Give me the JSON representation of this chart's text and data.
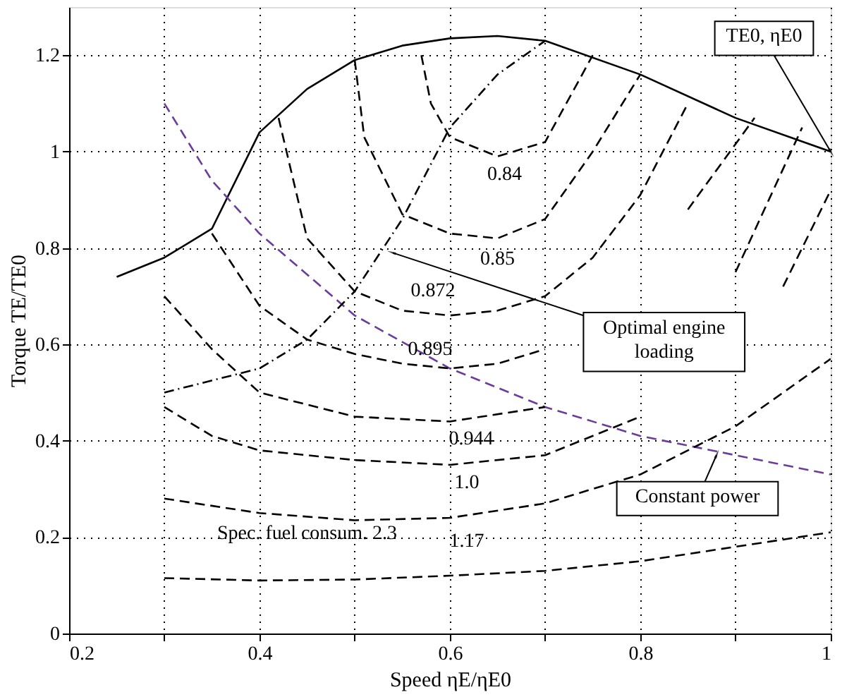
{
  "chart_data": {
    "type": "line",
    "xlabel": "Speed ηE/ηE0",
    "ylabel": "Torque TE/TE0",
    "xlim": [
      0.2,
      1.0
    ],
    "ylim": [
      0,
      1.3
    ],
    "xticks": [
      0.2,
      {
        "value": 0.3,
        "label": null
      },
      0.4,
      {
        "value": 0.5,
        "label": null
      },
      0.6,
      {
        "value": 0.7,
        "label": null
      },
      0.8,
      {
        "value": 0.9,
        "label": null
      },
      {
        "value": 1.0,
        "label": "1"
      }
    ],
    "yticks": [
      0,
      0.2,
      0.4,
      0.6,
      0.8,
      {
        "value": 1.0,
        "label": "1"
      },
      1.2
    ],
    "grid": true,
    "marker": "none",
    "series": [
      {
        "type": "line",
        "color": "#000000",
        "line_style": "solid",
        "x": [
          0.25,
          0.3,
          0.35,
          0.4,
          0.45,
          0.5,
          0.55,
          0.6,
          0.65,
          0.7,
          0.8,
          0.9,
          1.0
        ],
        "values": [
          0.74,
          0.78,
          0.84,
          1.04,
          1.13,
          1.19,
          1.22,
          1.235,
          1.24,
          1.23,
          1.16,
          1.07,
          1.0
        ]
      },
      {
        "type": "line",
        "color": "#6a3d9a",
        "line_style": "dashed",
        "x": [
          0.3,
          0.35,
          0.4,
          0.5,
          0.6,
          0.7,
          0.8,
          0.9,
          1.0
        ],
        "values": [
          1.1,
          0.94,
          0.83,
          0.66,
          0.55,
          0.47,
          0.41,
          0.37,
          0.33
        ]
      },
      {
        "type": "line",
        "color": "#000000",
        "line_style": "dashdot",
        "x": [
          0.3,
          0.4,
          0.45,
          0.5,
          0.55,
          0.6,
          0.65,
          0.7
        ],
        "values": [
          0.5,
          0.55,
          0.61,
          0.71,
          0.86,
          1.05,
          1.16,
          1.23
        ]
      },
      {
        "type": "line",
        "color": "#000000",
        "line_style": "dashed",
        "x": [
          0.57,
          0.58,
          0.6,
          0.65,
          0.7,
          0.75
        ],
        "values": [
          1.2,
          1.1,
          1.03,
          0.99,
          1.02,
          1.2
        ]
      },
      {
        "type": "line",
        "color": "#000000",
        "line_style": "dashed",
        "x": [
          0.5,
          0.51,
          0.55,
          0.6,
          0.65,
          0.7,
          0.75,
          0.8
        ],
        "values": [
          1.19,
          1.03,
          0.87,
          0.83,
          0.82,
          0.86,
          1.0,
          1.16
        ]
      },
      {
        "type": "line",
        "color": "#000000",
        "line_style": "dashed",
        "x": [
          0.42,
          0.45,
          0.5,
          0.55,
          0.6,
          0.65,
          0.7,
          0.75,
          0.8,
          0.85
        ],
        "values": [
          1.07,
          0.82,
          0.71,
          0.67,
          0.66,
          0.67,
          0.7,
          0.78,
          0.91,
          1.1
        ]
      },
      {
        "type": "line",
        "color": "#000000",
        "line_style": "dashed",
        "x": [
          0.35,
          0.4,
          0.45,
          0.5,
          0.55,
          0.6,
          0.65,
          0.7,
          0.75,
          0.8,
          0.85,
          0.92
        ],
        "values": [
          0.83,
          0.68,
          0.61,
          0.58,
          0.56,
          0.55,
          0.56,
          0.59,
          null,
          null,
          0.88,
          1.07
        ]
      },
      {
        "type": "line",
        "color": "#000000",
        "line_style": "dashed",
        "x": [
          0.3,
          0.35,
          0.4,
          0.5,
          0.6,
          0.7,
          0.8,
          0.85,
          0.9,
          0.97
        ],
        "values": [
          0.7,
          0.59,
          0.5,
          0.45,
          0.44,
          0.47,
          null,
          null,
          0.75,
          1.05
        ]
      },
      {
        "type": "line",
        "color": "#000000",
        "line_style": "dashed",
        "x": [
          0.3,
          0.35,
          0.4,
          0.5,
          0.6,
          0.7,
          0.8,
          0.9,
          0.95,
          1.0
        ],
        "values": [
          0.47,
          0.41,
          0.38,
          0.36,
          0.35,
          0.37,
          0.45,
          null,
          0.72,
          0.92
        ]
      },
      {
        "type": "line",
        "color": "#000000",
        "line_style": "dashed",
        "x": [
          0.3,
          0.4,
          0.5,
          0.6,
          0.7,
          0.8,
          0.9,
          1.0
        ],
        "values": [
          0.28,
          0.25,
          0.235,
          0.24,
          0.27,
          0.33,
          0.43,
          0.57
        ]
      },
      {
        "type": "line",
        "color": "#000000",
        "line_style": "dashed",
        "x": [
          0.3,
          0.4,
          0.5,
          0.6,
          0.7,
          0.8,
          0.9,
          1.0
        ],
        "values": [
          0.115,
          0.11,
          0.112,
          0.12,
          0.13,
          0.15,
          0.18,
          0.21
        ]
      }
    ],
    "annotations": [
      {
        "text": "0.84",
        "x": 0.65,
        "y": 0.99
      },
      {
        "text": "0.85",
        "x": 0.65,
        "y": 0.82
      },
      {
        "text": "0.872",
        "x": 0.6,
        "y": 0.66
      },
      {
        "text": "0.895",
        "x": 0.6,
        "y": 0.55
      },
      {
        "text": "0.944",
        "x": 0.6,
        "y": 0.44
      },
      {
        "text": "1.0",
        "x": 0.6,
        "y": 0.35
      },
      {
        "text": "1.17",
        "x": 0.6,
        "y": 0.24
      },
      {
        "text": "Spec. fuel consum. 2.3",
        "x": 0.45,
        "y": 0.11
      },
      {
        "text": "TE0, ηE0",
        "x": 1.0,
        "y": 1.0
      },
      {
        "text": "Optimal engine loading",
        "x": 0.54,
        "y": 0.79
      },
      {
        "text": "Constant power",
        "x": 0.88,
        "y": 0.37
      }
    ]
  }
}
